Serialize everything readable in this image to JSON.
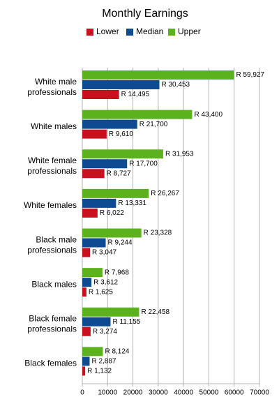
{
  "chart_data": {
    "type": "hbar",
    "title": "Monthly Earnings",
    "categories": [
      "White male professionals",
      "White males",
      "White female professionals",
      "White females",
      "Black male professionals",
      "Black males",
      "Black female professionals",
      "Black females"
    ],
    "series": [
      {
        "name": "Lower",
        "color": "#c8101e",
        "values": [
          14495,
          9610,
          8727,
          6022,
          3047,
          1625,
          3274,
          1132
        ],
        "value_labels": [
          "R 14,495",
          "R 9,610",
          "R 8,727",
          "R 6,022",
          "R 3,047",
          "R 1,625",
          "R 3,274",
          "R 1,132"
        ]
      },
      {
        "name": "Median",
        "color": "#0e4a92",
        "values": [
          30453,
          21700,
          17700,
          13331,
          9244,
          3612,
          11155,
          2887
        ],
        "value_labels": [
          "R 30,453",
          "R 21,700",
          "R 17,700",
          "R 13,331",
          "R 9,244",
          "R 3,612",
          "R 11,155",
          "R 2,887"
        ]
      },
      {
        "name": "Upper",
        "color": "#5bb21c",
        "values": [
          59927,
          43400,
          31953,
          26267,
          23328,
          7968,
          22458,
          8124
        ],
        "value_labels": [
          "R 59,927",
          "R 43,400",
          "R 31,953",
          "R 26,267",
          "R 23,328",
          "R 7,968",
          "R 22,458",
          "R 8,124"
        ]
      }
    ],
    "xlim": [
      0,
      70000
    ],
    "xticks": [
      0,
      10000,
      20000,
      30000,
      40000,
      50000,
      60000,
      70000
    ],
    "grid": true,
    "legend": "top"
  }
}
